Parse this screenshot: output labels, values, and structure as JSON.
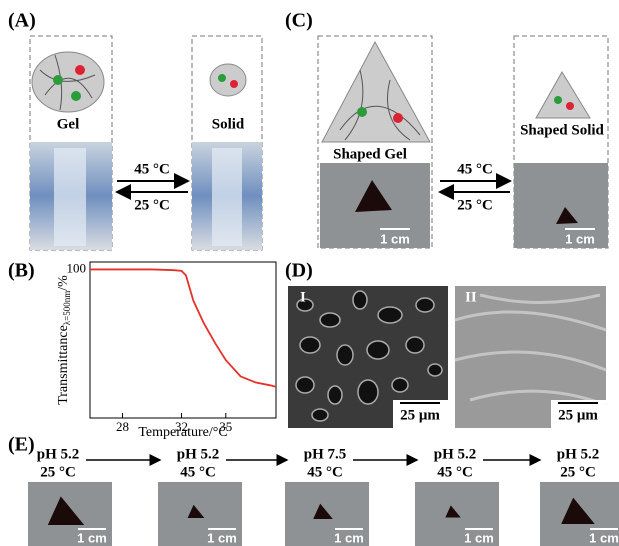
{
  "A": {
    "label": "(A)",
    "gel": "Gel",
    "solid": "Solid",
    "heat": "45 °C",
    "cool": "25 °C"
  },
  "C": {
    "label": "(C)",
    "gel": "Shaped Gel",
    "solid": "Shaped Solid",
    "heat": "45 °C",
    "cool": "25 °C",
    "scale_gel": "1 cm",
    "scale_solid": "1 cm"
  },
  "chart_data": {
    "type": "line",
    "panel_label": "(B)",
    "ylabel": "Transmittance",
    "ylabel_sub": "λ=500nm",
    "ylabel_unit": "/%",
    "xlabel": "Temperature/°C",
    "x": [
      25.8,
      28,
      30,
      31.5,
      32,
      32.3,
      32.8,
      33.5,
      34.3,
      35,
      36,
      37,
      38,
      38.4
    ],
    "values": [
      100,
      100,
      100,
      99.5,
      99,
      96,
      79,
      64,
      50,
      39,
      28,
      24,
      22,
      21
    ],
    "color": "#e8302a",
    "xlim": [
      25.8,
      38.4
    ],
    "ylim": [
      0,
      105
    ],
    "xticks": [
      28,
      32,
      35
    ],
    "yticks": [
      100
    ]
  },
  "D": {
    "label": "(D)",
    "left": "I",
    "right": "II",
    "scale_left": "25 μm",
    "scale_right": "25 μm"
  },
  "E": {
    "label": "(E)",
    "steps": [
      {
        "ph": "pH 5.2",
        "temp": "25 °C",
        "scale": "1 cm"
      },
      {
        "ph": "pH 5.2",
        "temp": "45 °C",
        "scale": "1 cm"
      },
      {
        "ph": "pH 7.5",
        "temp": "45 °C",
        "scale": "1 cm"
      },
      {
        "ph": "pH 5.2",
        "temp": "45 °C",
        "scale": "1 cm"
      },
      {
        "ph": "pH 5.2",
        "temp": "25 °C",
        "scale": "1 cm"
      }
    ]
  }
}
